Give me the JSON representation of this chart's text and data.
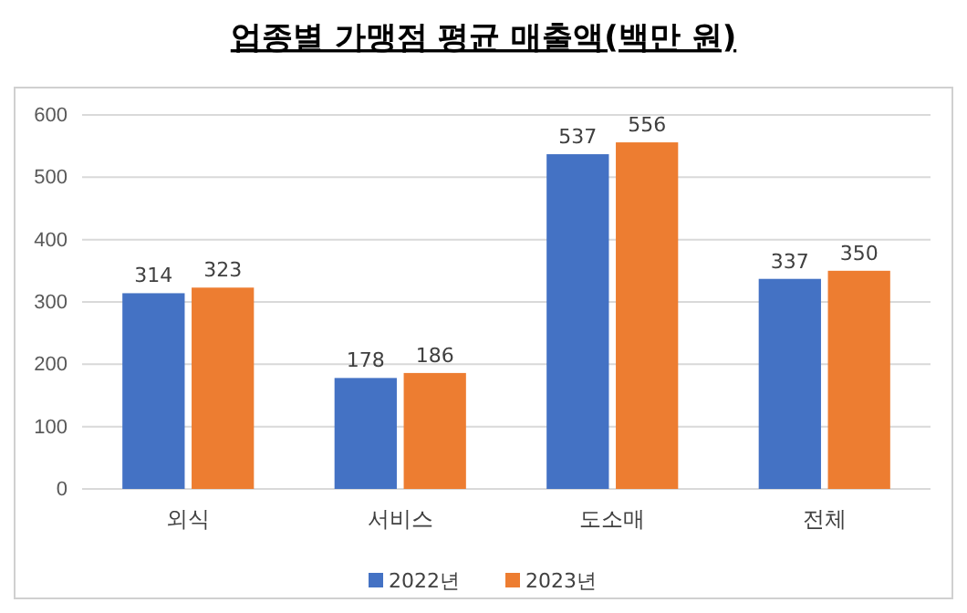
{
  "chart_data": {
    "type": "bar",
    "title": "업종별 가맹점 평균 매출액(백만 원)",
    "categories": [
      "외식",
      "서비스",
      "도소매",
      "전체"
    ],
    "series": [
      {
        "name": "2022년",
        "color": "#4472c4",
        "values": [
          314,
          178,
          537,
          337
        ]
      },
      {
        "name": "2023년",
        "color": "#ed7d31",
        "values": [
          323,
          186,
          556,
          350
        ]
      }
    ],
    "ylim": [
      0,
      600
    ],
    "yticks": [
      0,
      100,
      200,
      300,
      400,
      500,
      600
    ],
    "grid": "y",
    "legend": "bottom",
    "data_labels": true
  }
}
